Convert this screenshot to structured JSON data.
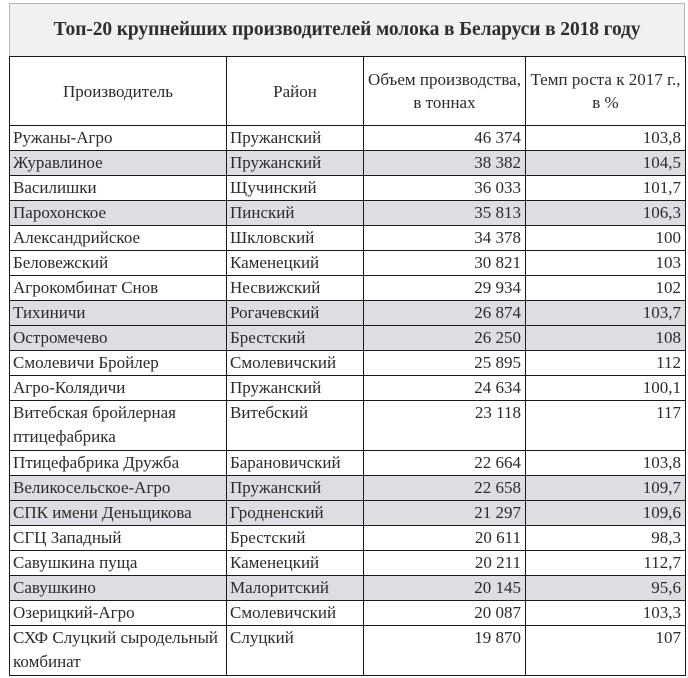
{
  "title": "Топ-20 крупнейших производителей молока в Беларуси в 2018 году",
  "columns": [
    {
      "label": "Производитель"
    },
    {
      "label": "Район"
    },
    {
      "label": "Объем производства, в тоннах"
    },
    {
      "label": "Темп роста к 2017 г., в %"
    }
  ],
  "colors": {
    "title_background": "#f1f1f1",
    "shaded_row": "#dcdee4",
    "border": "#1a1a1a",
    "text": "#2b2b2b"
  },
  "rows": [
    {
      "producer": "Ружаны-Агро",
      "district": "Пружанский",
      "volume": "46 374",
      "growth": "103,8",
      "shaded": false
    },
    {
      "producer": "Журавлиное",
      "district": "Пружанский",
      "volume": "38 382",
      "growth": "104,5",
      "shaded": true
    },
    {
      "producer": "Василишки",
      "district": "Щучинский",
      "volume": "36 033",
      "growth": "101,7",
      "shaded": false
    },
    {
      "producer": "Парохонское",
      "district": "Пинский",
      "volume": "35 813",
      "growth": "106,3",
      "shaded": true
    },
    {
      "producer": "Александрийское",
      "district": "Шкловский",
      "volume": "34 378",
      "growth": "100",
      "shaded": false
    },
    {
      "producer": "Беловежский",
      "district": "Каменецкий",
      "volume": "30 821",
      "growth": "103",
      "shaded": false
    },
    {
      "producer": "Агрокомбинат Снов",
      "district": "Несвижский",
      "volume": "29 934",
      "growth": "102",
      "shaded": false
    },
    {
      "producer": "Тихиничи",
      "district": "Рогачевский",
      "volume": "26 874",
      "growth": "103,7",
      "shaded": true
    },
    {
      "producer": "Остромечево",
      "district": "Брестский",
      "volume": "26 250",
      "growth": "108",
      "shaded": true
    },
    {
      "producer": "Смолевичи Бройлер",
      "district": "Смолевичский",
      "volume": "25 895",
      "growth": "112",
      "shaded": false
    },
    {
      "producer": "Агро-Колядичи",
      "district": "Пружанский",
      "volume": "24 634",
      "growth": "100,1",
      "shaded": false
    },
    {
      "producer": "Витебская бройлерная птицефабрика",
      "district": "Витебский",
      "volume": "23 118",
      "growth": "117",
      "shaded": false
    },
    {
      "producer": "Птицефабрика Дружба",
      "district": "Барановичский",
      "volume": "22 664",
      "growth": "103,8",
      "shaded": false
    },
    {
      "producer": "Великосельское-Агро",
      "district": "Пружанский",
      "volume": "22 658",
      "growth": "109,7",
      "shaded": true
    },
    {
      "producer": "СПК имени Деньщикова",
      "district": "Гродненский",
      "volume": "21 297",
      "growth": "109,6",
      "shaded": true
    },
    {
      "producer": "СГЦ Западный",
      "district": "Брестский",
      "volume": "20 611",
      "growth": "98,3",
      "shaded": false
    },
    {
      "producer": "Савушкина пуща",
      "district": "Каменецкий",
      "volume": "20 211",
      "growth": "112,7",
      "shaded": false
    },
    {
      "producer": "Савушкино",
      "district": "Малоритский",
      "volume": "20 145",
      "growth": "95,6",
      "shaded": true
    },
    {
      "producer": "Озерицкий-Агро",
      "district": "Смолевичский",
      "volume": "20 087",
      "growth": "103,3",
      "shaded": false
    },
    {
      "producer": "СХФ Слуцкий сыродельный комбинат",
      "district": "Слуцкий",
      "volume": "19 870",
      "growth": "107",
      "shaded": false
    }
  ]
}
